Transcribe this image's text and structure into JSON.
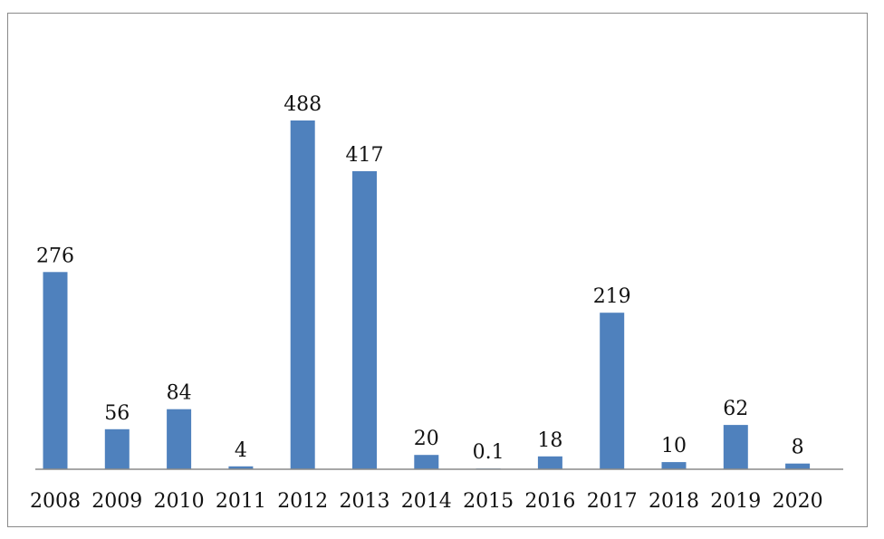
{
  "chart_data": {
    "type": "bar",
    "categories": [
      "2008",
      "2009",
      "2010",
      "2011",
      "2012",
      "2013",
      "2014",
      "2015",
      "2016",
      "2017",
      "2018",
      "2019",
      "2020"
    ],
    "values": [
      276,
      56,
      84,
      4,
      488,
      417,
      20,
      0.1,
      18,
      219,
      10,
      62,
      8
    ],
    "data_labels": [
      "276",
      "56",
      "84",
      "4",
      "488",
      "417",
      "20",
      "0.1",
      "18",
      "219",
      "10",
      "62",
      "8"
    ],
    "title": "",
    "xlabel": "",
    "ylabel": "",
    "ylim": [
      0,
      488
    ],
    "grid": false,
    "legend": "none",
    "colors": {
      "bar": "#4f81bd",
      "axis": "#8a8a8a",
      "frame": "#8a8a8a"
    }
  }
}
